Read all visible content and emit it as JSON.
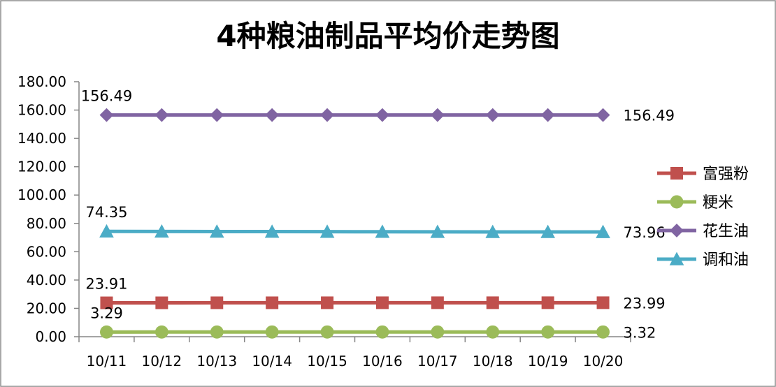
{
  "chart_data": {
    "type": "line",
    "title": "4种粮油制品平均价走势图",
    "xlabel": "",
    "ylabel": "",
    "categories": [
      "10/11",
      "10/12",
      "10/13",
      "10/14",
      "10/15",
      "10/16",
      "10/17",
      "10/18",
      "10/19",
      "10/20"
    ],
    "ylim": [
      0,
      180
    ],
    "yticks": [
      "0.00",
      "20.00",
      "40.00",
      "60.00",
      "80.00",
      "100.00",
      "120.00",
      "140.00",
      "160.00",
      "180.00"
    ],
    "grid": false,
    "legend_position": "right",
    "series": [
      {
        "name": "富强粉",
        "color": "#c0504d",
        "marker": "square",
        "values": [
          23.91,
          23.93,
          23.95,
          23.95,
          23.96,
          23.97,
          23.98,
          23.98,
          23.99,
          23.99
        ],
        "first_label": "23.91",
        "last_label": "23.99"
      },
      {
        "name": "粳米",
        "color": "#9bbb59",
        "marker": "circle",
        "values": [
          3.29,
          3.3,
          3.3,
          3.31,
          3.31,
          3.31,
          3.31,
          3.32,
          3.32,
          3.32
        ],
        "first_label": "3.29",
        "last_label": "3.32"
      },
      {
        "name": "花生油",
        "color": "#8064a2",
        "marker": "diamond",
        "values": [
          156.49,
          156.49,
          156.49,
          156.49,
          156.49,
          156.49,
          156.49,
          156.49,
          156.49,
          156.49
        ],
        "first_label": "156.49",
        "last_label": "156.49"
      },
      {
        "name": "调和油",
        "color": "#4bacc6",
        "marker": "triangle",
        "values": [
          74.35,
          74.3,
          74.25,
          74.2,
          74.15,
          74.1,
          74.05,
          74.0,
          73.98,
          73.96
        ],
        "first_label": "74.35",
        "last_label": "73.96"
      }
    ]
  }
}
